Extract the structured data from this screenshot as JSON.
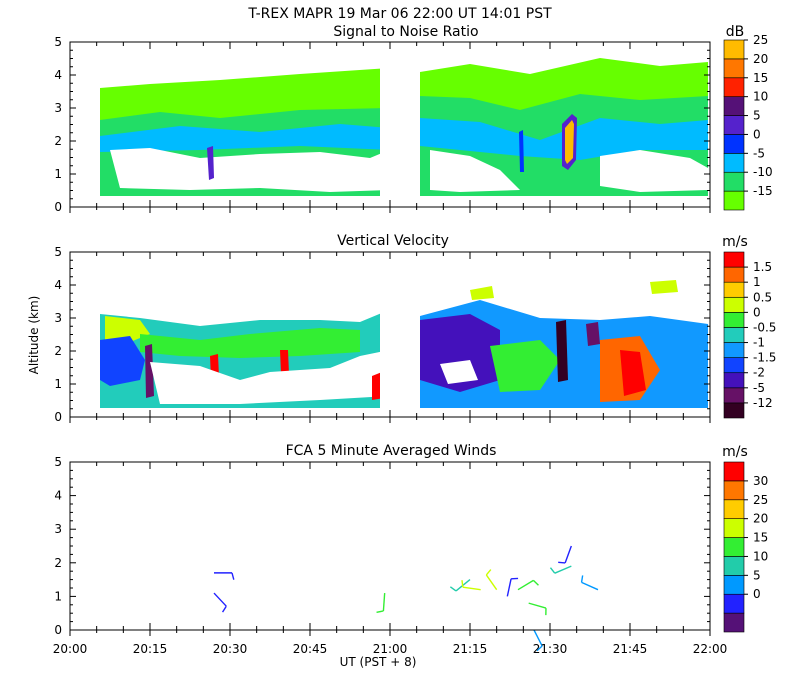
{
  "header": {
    "line1": "T-REX   MAPR 19 Mar 06   22:00 UT   14:01   PST"
  },
  "chart_data": [
    {
      "type": "heatmap",
      "title": "Signal to Noise Ratio",
      "xlabel": "",
      "ylabel": "",
      "ylim": [
        0,
        5
      ],
      "yticks": [
        "0",
        "1",
        "2",
        "3",
        "4",
        "5"
      ],
      "colorbar": {
        "unit": "dB",
        "labels": [
          "-15",
          "-10",
          "-5",
          "0",
          "5",
          "10",
          "15",
          "20",
          "25"
        ],
        "colors": [
          "#66ff00",
          "#22dd66",
          "#00bbff",
          "#0033ff",
          "#5522cc",
          "#551177",
          "#ff2200",
          "#ff7700",
          "#ffbb00"
        ]
      },
      "data_gap": [
        "21:00",
        "21:05"
      ],
      "altitude_range_km": [
        0.3,
        4.2
      ]
    },
    {
      "type": "heatmap",
      "title": "Vertical Velocity",
      "xlabel": "",
      "ylabel": "Altitude (km)",
      "ylim": [
        0,
        5
      ],
      "yticks": [
        "0",
        "1",
        "2",
        "3",
        "4",
        "5"
      ],
      "colorbar": {
        "unit": "m/s",
        "labels": [
          "-12",
          "-5",
          "-2",
          "-1.5",
          "-1",
          "-0.5",
          "0",
          "0.5",
          "1",
          "1.5"
        ],
        "colors": [
          "#330022",
          "#661166",
          "#4411bb",
          "#1144ff",
          "#1199ff",
          "#22ccbb",
          "#33ee33",
          "#ccff00",
          "#ffcc00",
          "#ff6600",
          "#ff0000"
        ]
      },
      "data_gap": [
        "21:00",
        "21:05"
      ],
      "altitude_range_km": [
        0.3,
        4.1
      ]
    },
    {
      "type": "scatter",
      "title": "FCA 5 Minute Averaged Winds",
      "xlabel": "UT  (PST + 8)",
      "ylabel": "",
      "ylim": [
        0,
        5
      ],
      "yticks": [
        "0",
        "1",
        "2",
        "3",
        "4",
        "5"
      ],
      "xticks": [
        "20:00",
        "20:15",
        "20:30",
        "20:45",
        "21:00",
        "21:15",
        "21:30",
        "21:45",
        "22:00"
      ],
      "colorbar": {
        "unit": "m/s",
        "labels": [
          "0",
          "5",
          "10",
          "15",
          "20",
          "25",
          "30"
        ],
        "colors": [
          "#551177",
          "#2222ff",
          "#0099ff",
          "#22ccaa",
          "#33ee33",
          "#ccff00",
          "#ffcc00",
          "#ff7700",
          "#ff0000"
        ]
      },
      "barbs": [
        {
          "t": 27,
          "z": 1.7,
          "speed": 4
        },
        {
          "t": 27,
          "z": 1.1,
          "speed": 2
        },
        {
          "t": 59,
          "z": 1.1,
          "speed": 14
        },
        {
          "t": 75,
          "z": 1.5,
          "speed": 12
        },
        {
          "t": 77,
          "z": 1.2,
          "speed": 20
        },
        {
          "t": 80,
          "z": 1.2,
          "speed": 17
        },
        {
          "t": 82,
          "z": 1.0,
          "speed": 3
        },
        {
          "t": 84,
          "z": 1.2,
          "speed": 16
        },
        {
          "t": 86,
          "z": 0.8,
          "speed": 15
        },
        {
          "t": 87,
          "z": 0.0,
          "speed": 6
        },
        {
          "t": 94,
          "z": 2.5,
          "speed": 5
        },
        {
          "t": 94,
          "z": 1.9,
          "speed": 13
        },
        {
          "t": 99,
          "z": 1.2,
          "speed": 9
        }
      ]
    }
  ]
}
